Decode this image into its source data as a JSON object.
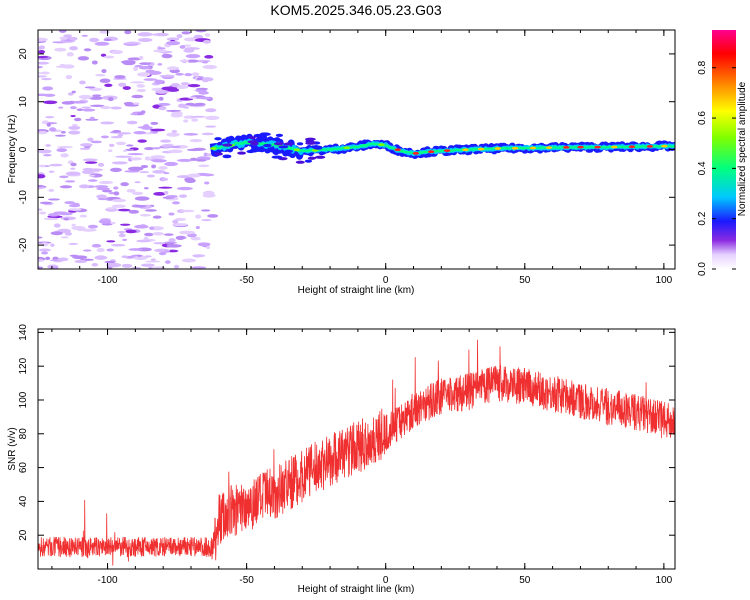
{
  "title": "KOM5.2025.346.05.23.G03",
  "chart_data": [
    {
      "type": "heatmap",
      "xlabel": "Height of straight line (km)",
      "ylabel": "Frequency (Hz)",
      "xlim": [
        -125,
        104
      ],
      "ylim": [
        -25,
        25
      ],
      "xticks": [
        -100,
        -50,
        0,
        50,
        100
      ],
      "yticks": [
        -20,
        -10,
        0,
        10,
        20
      ],
      "colorbar": {
        "label": "Normalized spectral amplitude",
        "range": [
          0,
          0.95
        ],
        "ticks": [
          0.0,
          0.2,
          0.4,
          0.6,
          0.8
        ]
      },
      "ridge": {
        "x": [
          -62,
          -55,
          -50,
          -45,
          -40,
          -35,
          -30,
          -20,
          -10,
          -5,
          0,
          5,
          10,
          15,
          20,
          30,
          40,
          50,
          60,
          70,
          80,
          90,
          100,
          104
        ],
        "freq": [
          0.2,
          1.0,
          1.5,
          1.2,
          0.9,
          0.3,
          -0.3,
          0,
          0.6,
          1.2,
          0.9,
          -0.3,
          -0.8,
          -0.5,
          -0.3,
          0,
          0.2,
          0.3,
          0.4,
          0.5,
          0.5,
          0.6,
          0.7,
          0.7
        ]
      }
    },
    {
      "type": "line",
      "xlabel": "Height of straight line (km)",
      "ylabel": "SNR (v/v)",
      "xlim": [
        -125,
        104
      ],
      "ylim": [
        0,
        142
      ],
      "xticks": [
        -100,
        -50,
        0,
        50,
        100
      ],
      "yticks": [
        20,
        40,
        60,
        80,
        100,
        120,
        140
      ],
      "color": "#f03030",
      "trend": {
        "x": [
          -125,
          -62,
          -60,
          -50,
          -40,
          -30,
          -20,
          -10,
          0,
          10,
          20,
          30,
          40,
          50,
          60,
          70,
          80,
          90,
          100,
          104
        ],
        "y": [
          13,
          13,
          30,
          38,
          45,
          55,
          65,
          72,
          80,
          94,
          102,
          105,
          110,
          108,
          104,
          100,
          96,
          93,
          88,
          87
        ]
      }
    }
  ]
}
